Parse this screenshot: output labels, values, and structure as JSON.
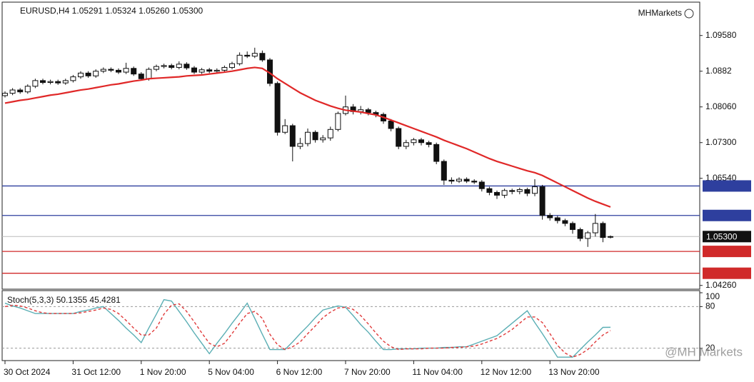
{
  "chart_data": [
    {
      "type": "candlestick",
      "title": "EURUSD,H4 1.05291 1.05324 1.05260 1.05300",
      "brand": "MHMarkets",
      "categories": [
        "30 Oct 2024",
        null,
        null,
        null,
        null,
        null,
        null,
        null,
        null,
        "31 Oct 12:00",
        null,
        null,
        null,
        null,
        null,
        null,
        null,
        null,
        "1 Nov 20:00",
        null,
        null,
        null,
        null,
        null,
        null,
        null,
        null,
        "5 Nov 04:00",
        null,
        null,
        null,
        null,
        null,
        null,
        null,
        null,
        "6 Nov 12:00",
        null,
        null,
        null,
        null,
        null,
        null,
        null,
        null,
        "7 Nov 20:00",
        null,
        null,
        null,
        null,
        null,
        null,
        null,
        null,
        "11 Nov 04:00",
        null,
        null,
        null,
        null,
        null,
        null,
        null,
        null,
        "12 Nov 12:00",
        null,
        null,
        null,
        null,
        null,
        null,
        null,
        null,
        "13 Nov 20:00",
        null,
        null,
        null,
        null,
        null,
        null,
        null,
        null
      ],
      "open": [
        1.083,
        1.0835,
        1.0842,
        1.0838,
        1.085,
        1.0862,
        1.0858,
        1.086,
        1.0857,
        1.0862,
        1.087,
        1.0878,
        1.0872,
        1.0882,
        1.0886,
        1.0884,
        1.088,
        1.0888,
        1.0876,
        1.0866,
        1.0886,
        1.0892,
        1.0894,
        1.089,
        1.0897,
        1.0889,
        1.088,
        1.0885,
        1.0882,
        1.0884,
        1.089,
        1.0898,
        1.0916,
        1.0914,
        1.092,
        1.0906,
        1.0856,
        1.0752,
        1.0766,
        1.0722,
        1.0728,
        1.0752,
        1.0736,
        1.074,
        1.0758,
        1.0792,
        1.0806,
        1.0796,
        1.08,
        1.0794,
        1.079,
        1.0776,
        1.076,
        1.0722,
        1.073,
        1.0736,
        1.073,
        1.0726,
        1.069,
        1.065,
        1.0648,
        1.0652,
        1.0648,
        1.0646,
        1.0632,
        1.0624,
        1.0618,
        1.0628,
        1.0626,
        1.063,
        1.0622,
        1.0636,
        1.0575,
        1.057,
        1.0564,
        1.0558,
        1.0545,
        1.0526,
        1.0538,
        1.0558,
        1.05291
      ],
      "high": [
        1.0839,
        1.0846,
        1.0846,
        1.0854,
        1.0866,
        1.0866,
        1.0864,
        1.0864,
        1.0866,
        1.0874,
        1.0882,
        1.0882,
        1.0886,
        1.089,
        1.089,
        1.0888,
        1.09,
        1.0892,
        1.088,
        1.089,
        1.0896,
        1.0898,
        1.0898,
        1.0903,
        1.0901,
        1.0893,
        1.0889,
        1.0889,
        1.0888,
        1.0894,
        1.0902,
        1.0922,
        1.0924,
        1.0932,
        1.0926,
        1.091,
        1.086,
        1.078,
        1.077,
        1.074,
        1.076,
        1.0756,
        1.0746,
        1.0764,
        1.0796,
        1.083,
        1.0812,
        1.0808,
        1.0804,
        1.0798,
        1.0794,
        1.078,
        1.0764,
        1.0736,
        1.074,
        1.074,
        1.0734,
        1.073,
        1.0694,
        1.0656,
        1.0656,
        1.0656,
        1.0652,
        1.065,
        1.0636,
        1.0628,
        1.0632,
        1.0632,
        1.0634,
        1.0634,
        1.0652,
        1.064,
        1.058,
        1.0574,
        1.0568,
        1.0562,
        1.0549,
        1.0542,
        1.0578,
        1.0562,
        1.05324
      ],
      "low": [
        1.0826,
        1.0831,
        1.0834,
        1.0834,
        1.0846,
        1.0854,
        1.0854,
        1.0853,
        1.0853,
        1.0858,
        1.0866,
        1.0868,
        1.0868,
        1.0878,
        1.088,
        1.0876,
        1.0876,
        1.0872,
        1.0862,
        1.0862,
        1.0882,
        1.0888,
        1.0886,
        1.0886,
        1.0885,
        1.0876,
        1.0876,
        1.0878,
        1.0878,
        1.088,
        1.0886,
        1.0894,
        1.091,
        1.091,
        1.0902,
        1.085,
        1.0745,
        1.0748,
        1.069,
        1.0716,
        1.0722,
        1.073,
        1.073,
        1.0734,
        1.0754,
        1.0788,
        1.079,
        1.079,
        1.0788,
        1.0784,
        1.077,
        1.0754,
        1.0716,
        1.0716,
        1.0724,
        1.0724,
        1.072,
        1.0684,
        1.064,
        1.0642,
        1.0644,
        1.0644,
        1.0642,
        1.0626,
        1.0618,
        1.061,
        1.0612,
        1.062,
        1.062,
        1.0616,
        1.0616,
        1.0566,
        1.0564,
        1.0558,
        1.0552,
        1.0536,
        1.052,
        1.0508,
        1.053,
        1.0518,
        1.0526
      ],
      "close": [
        1.0835,
        1.0842,
        1.0838,
        1.085,
        1.0862,
        1.0858,
        1.086,
        1.0857,
        1.0862,
        1.087,
        1.0878,
        1.0872,
        1.0882,
        1.0886,
        1.0884,
        1.088,
        1.0888,
        1.0876,
        1.0866,
        1.0886,
        1.0892,
        1.0894,
        1.089,
        1.0897,
        1.0889,
        1.088,
        1.0885,
        1.0882,
        1.0884,
        1.089,
        1.0898,
        1.0916,
        1.0914,
        1.092,
        1.0906,
        1.0856,
        1.0752,
        1.0766,
        1.0722,
        1.0728,
        1.0752,
        1.0736,
        1.074,
        1.0758,
        1.0792,
        1.0806,
        1.0796,
        1.08,
        1.0794,
        1.079,
        1.0776,
        1.076,
        1.0722,
        1.073,
        1.0736,
        1.073,
        1.0726,
        1.069,
        1.065,
        1.0648,
        1.0652,
        1.0648,
        1.0646,
        1.0632,
        1.0624,
        1.0618,
        1.0628,
        1.0626,
        1.063,
        1.0622,
        1.0636,
        1.0575,
        1.057,
        1.0564,
        1.0558,
        1.0545,
        1.0526,
        1.0538,
        1.0558,
        1.0528,
        1.053
      ],
      "ma": {
        "color": "#e02828",
        "values": [
          1.0814,
          1.0817,
          1.082,
          1.0822,
          1.0825,
          1.0828,
          1.0831,
          1.0833,
          1.0836,
          1.0839,
          1.0842,
          1.0844,
          1.0847,
          1.085,
          1.0853,
          1.0855,
          1.0858,
          1.0861,
          1.0863,
          1.0866,
          1.0867,
          1.0868,
          1.0869,
          1.087,
          1.0872,
          1.0873,
          1.0874,
          1.0876,
          1.0878,
          1.088,
          1.0882,
          1.0885,
          1.0888,
          1.089,
          1.0888,
          1.0878,
          1.0866,
          1.0856,
          1.0846,
          1.0836,
          1.0828,
          1.082,
          1.0814,
          1.0808,
          1.0803,
          1.0799,
          1.0797,
          1.0795,
          1.0792,
          1.0789,
          1.0784,
          1.0778,
          1.0772,
          1.0766,
          1.076,
          1.0754,
          1.0748,
          1.0742,
          1.0735,
          1.0729,
          1.0723,
          1.0717,
          1.071,
          1.0703,
          1.0696,
          1.069,
          1.0685,
          1.068,
          1.0675,
          1.067,
          1.0666,
          1.066,
          1.0652,
          1.0644,
          1.0636,
          1.0628,
          1.062,
          1.0612,
          1.0605,
          1.0599,
          1.0593
        ]
      },
      "ylim": [
        1.0418,
        1.1029
      ],
      "yticks": [
        {
          "value": 1.0958,
          "label": "1.09580"
        },
        1.0882,
        {
          "value": 1.0806,
          "label": "1.08060"
        },
        {
          "value": 1.073,
          "label": "1.07300"
        },
        {
          "value": 1.0654,
          "label": "1.06540"
        },
        {
          "value": 1.0426,
          "label": "1.04260"
        }
      ],
      "levels": [
        {
          "value": 1.06377,
          "color": "#2e3f9e"
        },
        {
          "value": 1.05749,
          "color": "#2e3f9e"
        },
        {
          "value": 1.053,
          "label": "1.05300",
          "color": "#111111"
        },
        {
          "value": 1.04984,
          "color": "#d02a2a"
        },
        {
          "value": 1.04519,
          "color": "#d02a2a"
        }
      ]
    },
    {
      "type": "line",
      "title": "Stoch(5,3,3) 50.1355 45.4281",
      "ylim": [
        0,
        100
      ],
      "yticks": [
        100,
        80,
        20
      ],
      "grid_levels": [
        80,
        20
      ],
      "series": [
        {
          "color": "#5aaeb4",
          "values": [
            85,
            81,
            78,
            74,
            70,
            70,
            70,
            70,
            70,
            70,
            73,
            75,
            78,
            80,
            70,
            60,
            49,
            39,
            28,
            49,
            69,
            90,
            88,
            73,
            58,
            42,
            27,
            12,
            27,
            41,
            56,
            70,
            85,
            63,
            40,
            18,
            18,
            18,
            29,
            41,
            52,
            64,
            75,
            78,
            81,
            79,
            67,
            54,
            43,
            30,
            18,
            18,
            19,
            19,
            19,
            20,
            20,
            20,
            21,
            21,
            22,
            22,
            26,
            30,
            34,
            38,
            47,
            56,
            65,
            74,
            57,
            41,
            24,
            7,
            7,
            7,
            18,
            29,
            39,
            50,
            50.1355
          ]
        },
        {
          "color": "#e03a3a",
          "dashed": true,
          "values": [
            80,
            82,
            81,
            78,
            74,
            71,
            70,
            70,
            70,
            70,
            71,
            73,
            75,
            78,
            76,
            70,
            60,
            49,
            39,
            39,
            49,
            69,
            82,
            84,
            73,
            58,
            42,
            27,
            22,
            27,
            41,
            56,
            70,
            73,
            63,
            40,
            25,
            18,
            22,
            29,
            41,
            52,
            64,
            72,
            78,
            79,
            76,
            67,
            55,
            42,
            30,
            22,
            18,
            19,
            19,
            19,
            20,
            20,
            20,
            21,
            21,
            22,
            23,
            26,
            30,
            34,
            40,
            47,
            56,
            65,
            65,
            57,
            41,
            24,
            13,
            7,
            11,
            18,
            29,
            39,
            45.4281
          ]
        }
      ]
    }
  ],
  "watermark": "@MH Markets"
}
